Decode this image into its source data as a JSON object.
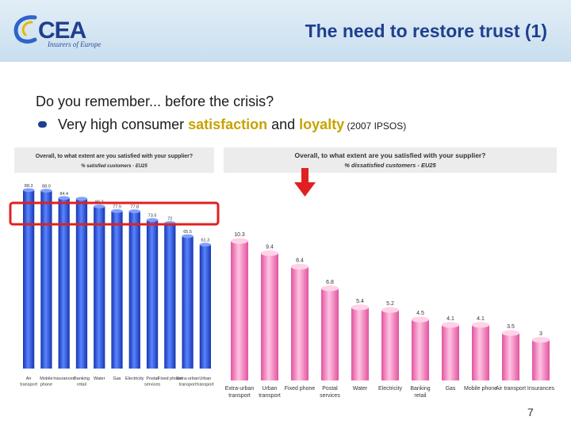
{
  "header": {
    "logo_text": "CEA",
    "logo_subtitle": "Insurers of Europe",
    "title": "The need to restore trust (1)"
  },
  "content": {
    "question": "Do you remember... before the crisis?",
    "bullet_prefix": "Very high consumer ",
    "bullet_word1": "satisfaction",
    "bullet_mid": " and ",
    "bullet_word2": "loyalty",
    "bullet_source": " (2007 IPSOS)"
  },
  "page_number": "7",
  "colors": {
    "brand": "#1f3f8f",
    "highlight": "#c7a200",
    "left_bars": "#1f46c8",
    "right_bars": "#f28ec4",
    "annotation": "#e02020"
  },
  "chart_data": [
    {
      "type": "bar",
      "title": "Overall, to what extent are you satisfied with your supplier?",
      "subtitle": "% satisfied customers - EU25",
      "categories": [
        "Air transport",
        "Mobile phone",
        "Insurances",
        "Banking retail",
        "Water",
        "Gas",
        "Electricity",
        "Postal services",
        "Fixed phone",
        "Extra-urban transport",
        "Urban transport"
      ],
      "values": [
        88.3,
        88.0,
        84.4,
        84.0,
        80.2,
        77.9,
        77.8,
        73.5,
        72.0,
        65.5,
        61.3
      ],
      "value_labels": [
        "88.3",
        "88.0",
        "84.4",
        "",
        "80.2",
        "77.9",
        "77.8",
        "73.5",
        "72",
        "65.5",
        "61.3"
      ],
      "ylim": [
        0,
        100
      ]
    },
    {
      "type": "bar",
      "title": "Overall, to what extent are you satisfied with your supplier?",
      "subtitle": "% dissatisfied customers - EU25",
      "categories": [
        "Extra-urban transport",
        "Urban transport",
        "Fixed phone",
        "Postal services",
        "Water",
        "Electricity",
        "Banking retail",
        "Gas",
        "Mobile phone",
        "Air transport",
        "Insurances"
      ],
      "values": [
        10.3,
        9.4,
        8.4,
        6.8,
        5.4,
        5.2,
        4.5,
        4.1,
        4.1,
        3.5,
        3.0
      ],
      "value_labels": [
        "10.3",
        "9.4",
        "8.4",
        "6.8",
        "5.4",
        "5.2",
        "4.5",
        "4.1",
        "4.1",
        "3.5",
        "3"
      ],
      "ylim": [
        0,
        12
      ]
    }
  ]
}
